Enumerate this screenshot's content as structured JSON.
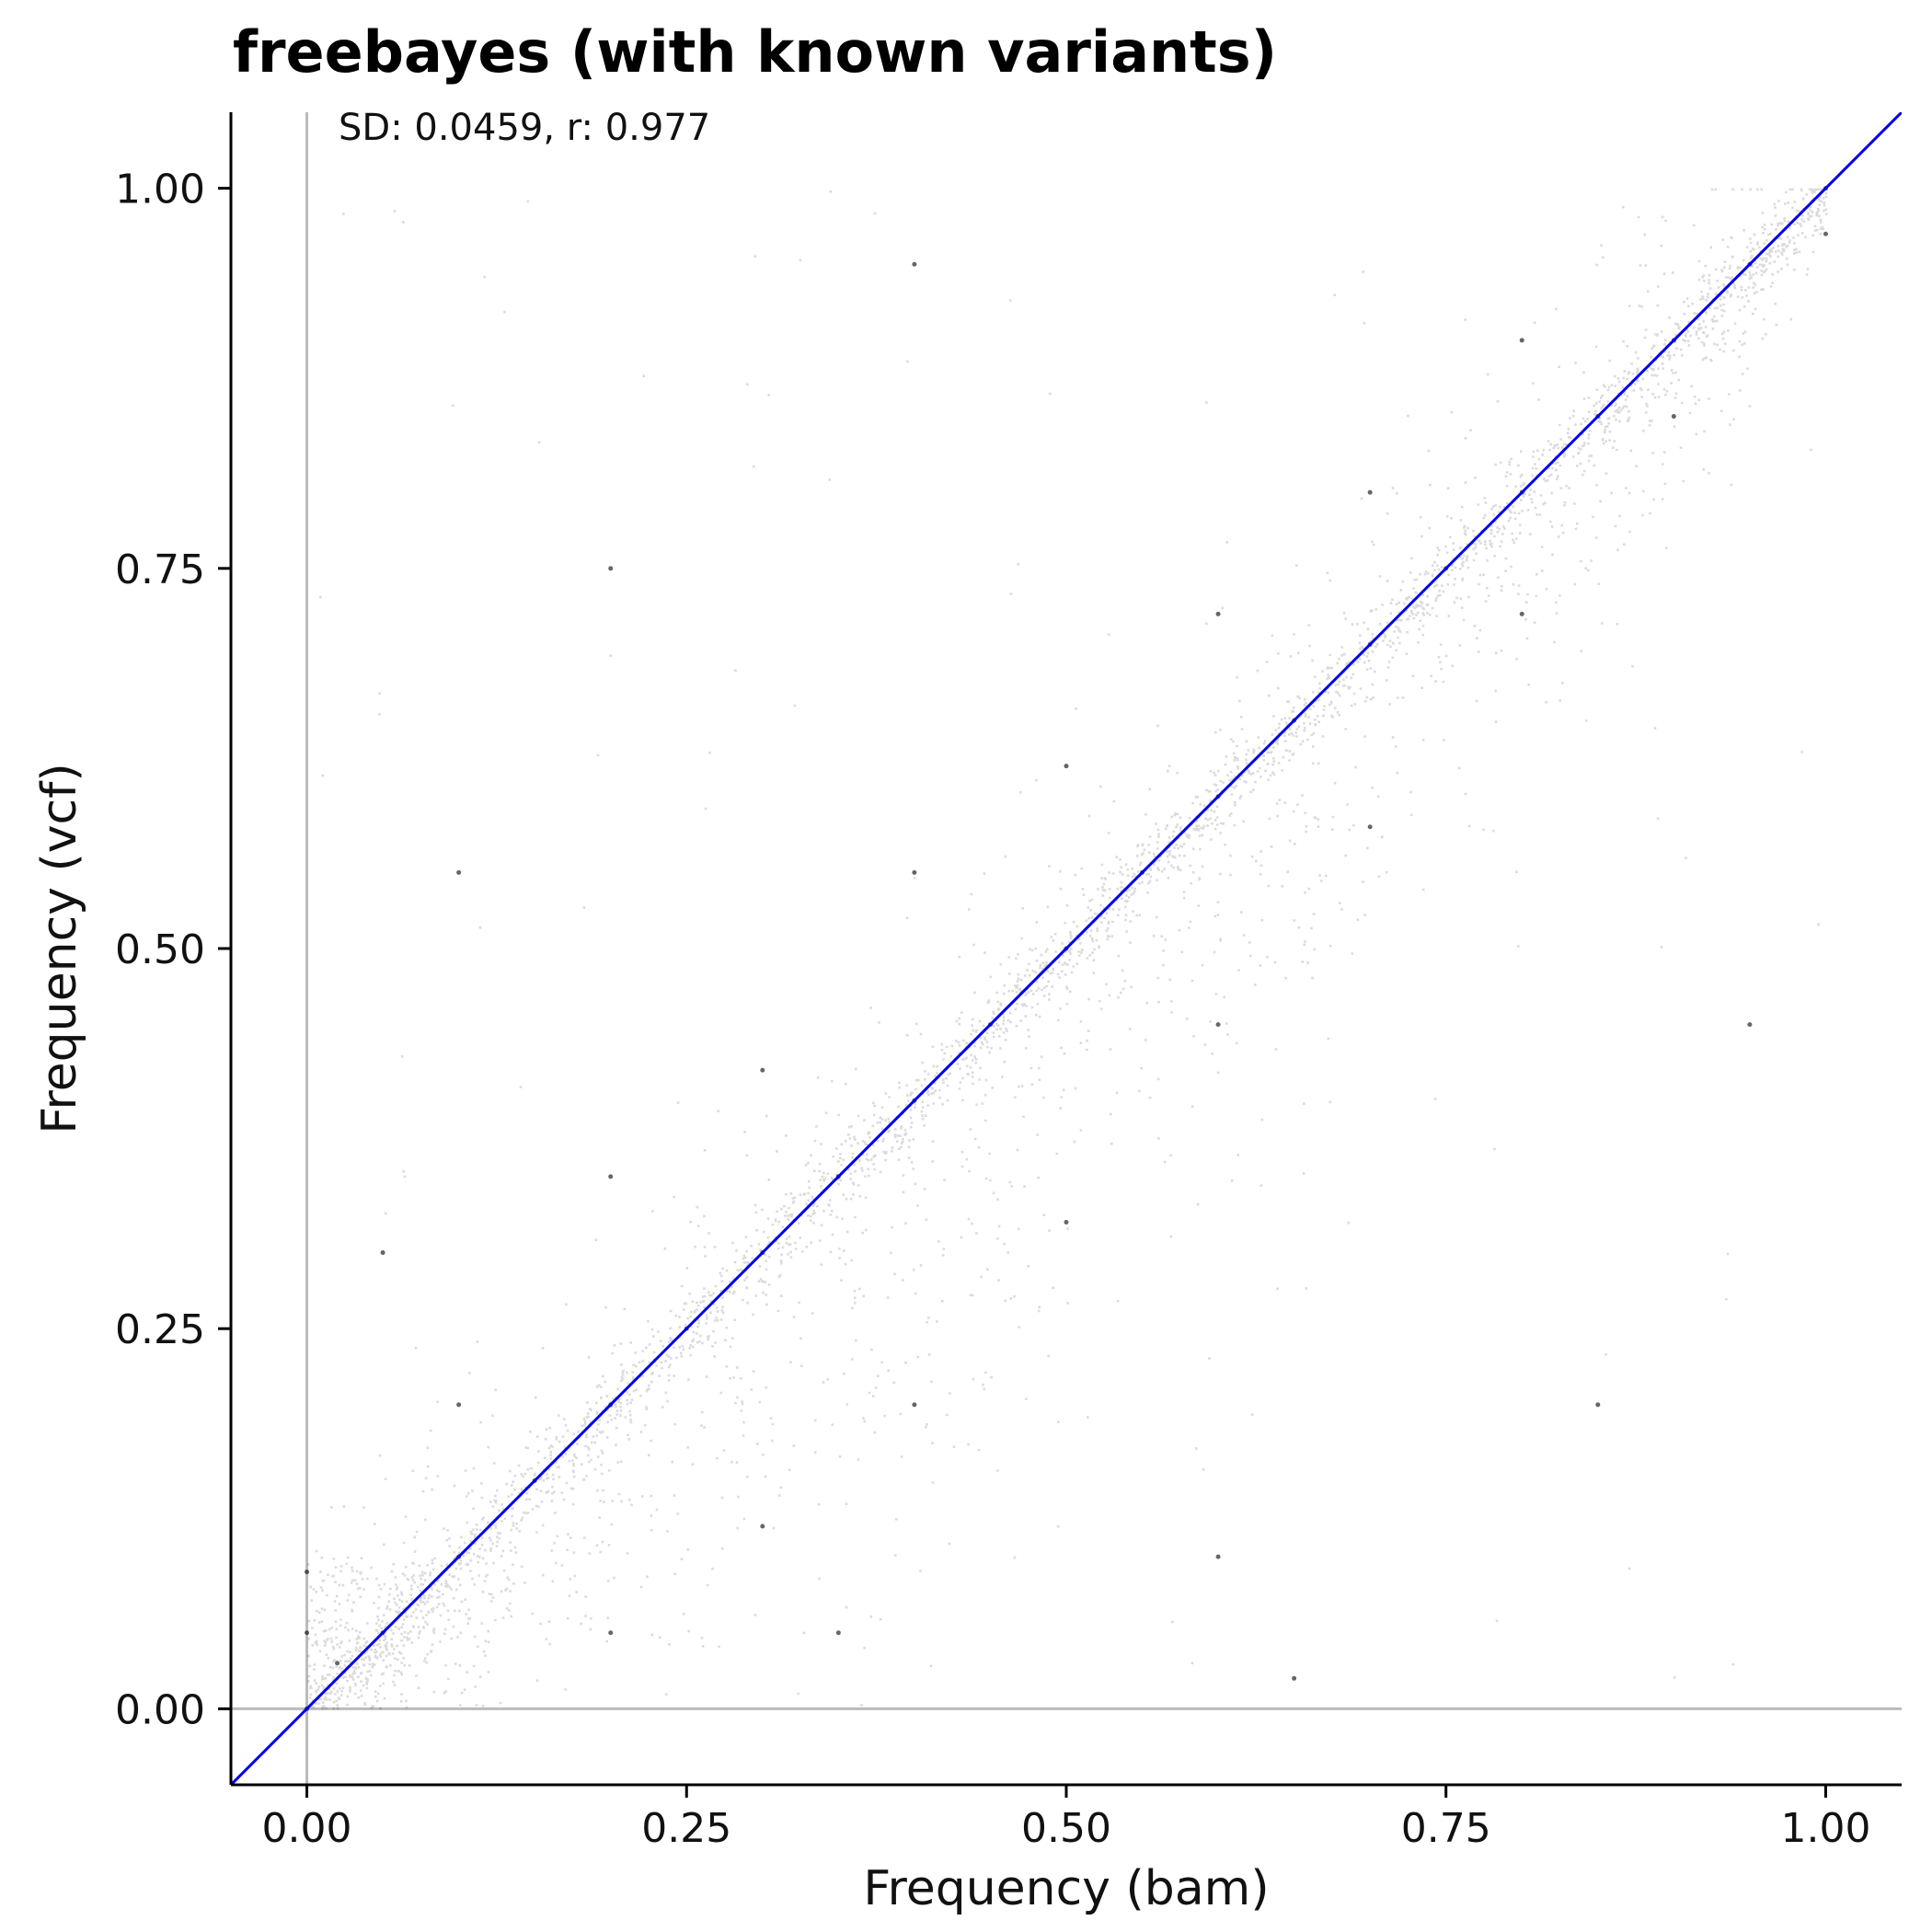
{
  "chart_data": {
    "type": "scatter",
    "title": "freebayes (with known variants)",
    "annotation": "SD: 0.0459, r: 0.977",
    "xlabel": "Frequency (bam)",
    "ylabel": "Frequency (vcf)",
    "xlim": [
      -0.05,
      1.05
    ],
    "ylim": [
      -0.05,
      1.05
    ],
    "xticks": [
      0.0,
      0.25,
      0.5,
      0.75,
      1.0
    ],
    "yticks": [
      0.0,
      0.25,
      0.5,
      0.75,
      1.0
    ],
    "xtick_labels": [
      "0.00",
      "0.25",
      "0.50",
      "0.75",
      "1.00"
    ],
    "ytick_labels": [
      "0.00",
      "0.25",
      "0.50",
      "0.75",
      "1.00"
    ],
    "grid": false,
    "reference_lines": {
      "vertical_x": 0,
      "horizontal_y": 0,
      "diagonal": "y = x"
    },
    "colors": {
      "points": "#000000",
      "diagonal": "#0000ee",
      "reference": "#bbbbbb",
      "axes": "#000000"
    },
    "series": [
      {
        "description_of_distribution": "dense cloud concentrated along y = x, spreading below the diagonal at mid frequencies and a dense band at x ≈ 0, y 0–0.1",
        "points": [
          [
            0.0,
            0.0
          ],
          [
            0.0,
            0.05
          ],
          [
            0.0,
            0.09
          ],
          [
            0.02,
            0.03
          ],
          [
            0.05,
            0.05
          ],
          [
            0.1,
            0.1
          ],
          [
            0.15,
            0.15
          ],
          [
            0.2,
            0.2
          ],
          [
            0.25,
            0.25
          ],
          [
            0.3,
            0.3
          ],
          [
            0.35,
            0.35
          ],
          [
            0.4,
            0.4
          ],
          [
            0.45,
            0.45
          ],
          [
            0.5,
            0.5
          ],
          [
            0.55,
            0.55
          ],
          [
            0.6,
            0.6
          ],
          [
            0.65,
            0.65
          ],
          [
            0.7,
            0.7
          ],
          [
            0.75,
            0.75
          ],
          [
            0.8,
            0.8
          ],
          [
            0.85,
            0.85
          ],
          [
            0.9,
            0.9
          ],
          [
            0.95,
            0.95
          ],
          [
            1.0,
            1.0
          ],
          [
            1.0,
            0.97
          ],
          [
            0.2,
            0.05
          ],
          [
            0.3,
            0.12
          ],
          [
            0.4,
            0.2
          ],
          [
            0.5,
            0.32
          ],
          [
            0.6,
            0.45
          ],
          [
            0.7,
            0.58
          ],
          [
            0.8,
            0.72
          ],
          [
            0.9,
            0.85
          ],
          [
            0.1,
            0.2
          ],
          [
            0.2,
            0.35
          ],
          [
            0.3,
            0.42
          ],
          [
            0.4,
            0.55
          ],
          [
            0.5,
            0.62
          ],
          [
            0.6,
            0.72
          ],
          [
            0.7,
            0.8
          ],
          [
            0.8,
            0.9
          ],
          [
            0.05,
            0.3
          ],
          [
            0.35,
            0.05
          ],
          [
            0.6,
            0.1
          ],
          [
            0.85,
            0.2
          ],
          [
            0.95,
            0.45
          ],
          [
            0.1,
            0.55
          ],
          [
            0.2,
            0.75
          ],
          [
            0.4,
            0.95
          ],
          [
            0.65,
            0.02
          ]
        ]
      }
    ]
  }
}
